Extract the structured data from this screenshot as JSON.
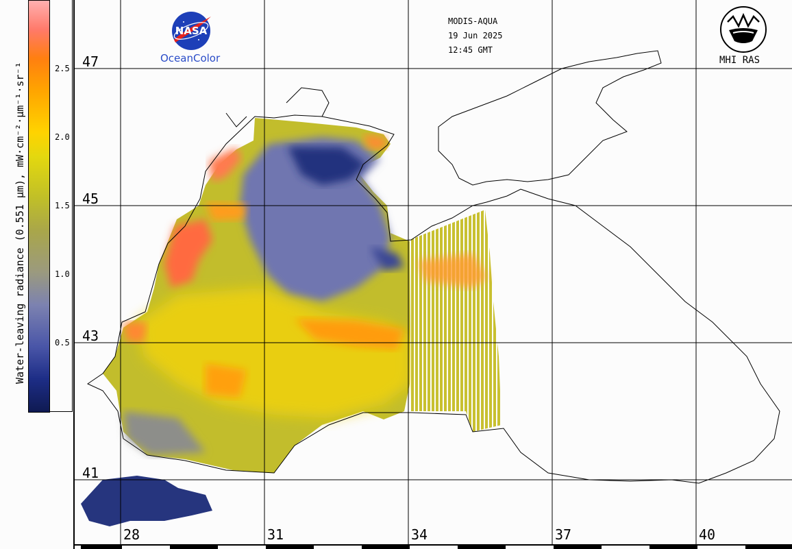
{
  "header": {
    "sensor": "MODIS-AQUA",
    "date": "19 Jun 2025",
    "time": "12:45 GMT"
  },
  "logos": {
    "left_brand": "OceanColor",
    "left_badge": "NASA",
    "right_brand": "MHI RAS"
  },
  "colorbar": {
    "title": "Water-leaving radiance (0.551 µm), mW·cm⁻²·µm⁻¹·sr⁻¹",
    "ticks": [
      "2.5",
      "2.0",
      "1.5",
      "1.0",
      "0.5"
    ],
    "range": [
      0,
      3.0
    ],
    "colors": [
      "#0f1a52",
      "#4a56a8",
      "#9b9a7e",
      "#c0bf28",
      "#ffd300",
      "#ff7f10",
      "#ffb0b0"
    ]
  },
  "grid": {
    "lat_labels": [
      "47",
      "45",
      "43",
      "41"
    ],
    "lon_labels": [
      "28",
      "31",
      "34",
      "37",
      "40"
    ]
  }
}
